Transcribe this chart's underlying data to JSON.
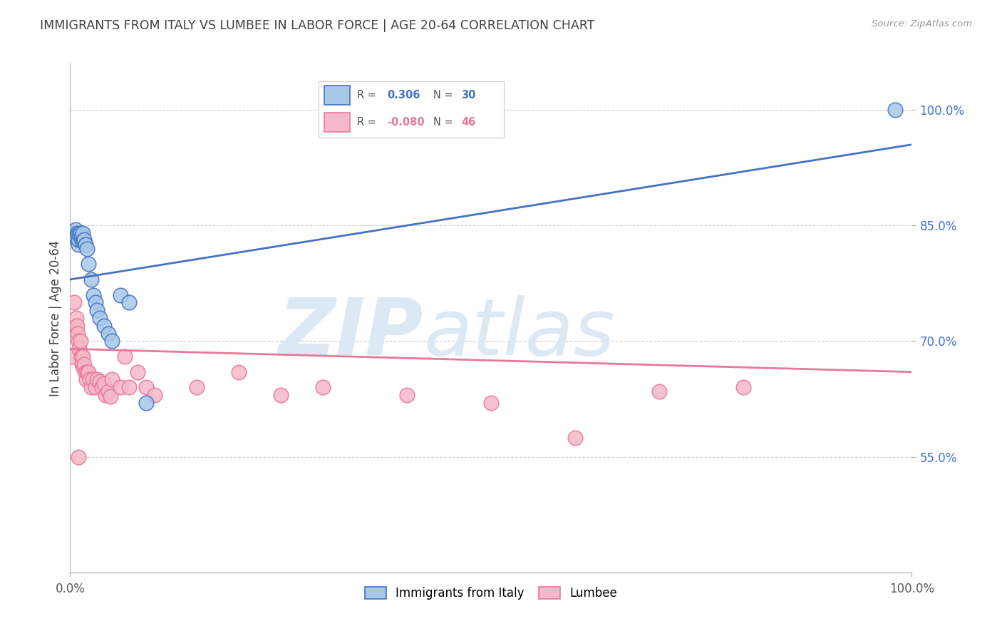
{
  "title": "IMMIGRANTS FROM ITALY VS LUMBEE IN LABOR FORCE | AGE 20-64 CORRELATION CHART",
  "source": "Source: ZipAtlas.com",
  "ylabel": "In Labor Force | Age 20-64",
  "yticks": [
    0.55,
    0.7,
    0.85,
    1.0
  ],
  "ytick_labels": [
    "55.0%",
    "70.0%",
    "85.0%",
    "100.0%"
  ],
  "xlim": [
    0.0,
    1.0
  ],
  "ylim": [
    0.4,
    1.06
  ],
  "xtick_labels": [
    "0.0%",
    "100.0%"
  ],
  "r_italy": "0.306",
  "n_italy": "30",
  "r_lumbee": "-0.080",
  "n_lumbee": "46",
  "watermark_zip": "ZIP",
  "watermark_atlas": "atlas",
  "color_italy_fill": "#a8c8e8",
  "color_italy_edge": "#4472c4",
  "color_lumbee_fill": "#f4b8c8",
  "color_lumbee_edge": "#e87898",
  "color_line_italy": "#4472c4",
  "color_line_lumbee": "#e87898",
  "color_ytick": "#4472c4",
  "color_grid": "#cccccc",
  "color_title": "#404040",
  "italy_x": [
    0.003,
    0.005,
    0.006,
    0.007,
    0.008,
    0.009,
    0.01,
    0.01,
    0.011,
    0.012,
    0.013,
    0.014,
    0.015,
    0.016,
    0.017,
    0.018,
    0.02,
    0.022,
    0.025,
    0.028,
    0.03,
    0.032,
    0.035,
    0.04,
    0.045,
    0.05,
    0.06,
    0.07,
    0.09,
    0.98
  ],
  "italy_y": [
    0.84,
    0.835,
    0.845,
    0.835,
    0.84,
    0.838,
    0.825,
    0.832,
    0.838,
    0.84,
    0.835,
    0.83,
    0.84,
    0.83,
    0.832,
    0.825,
    0.82,
    0.8,
    0.78,
    0.76,
    0.75,
    0.74,
    0.73,
    0.72,
    0.71,
    0.7,
    0.76,
    0.75,
    0.62,
    1.0
  ],
  "lumbee_x": [
    0.002,
    0.005,
    0.006,
    0.007,
    0.008,
    0.009,
    0.01,
    0.011,
    0.012,
    0.013,
    0.014,
    0.015,
    0.016,
    0.017,
    0.018,
    0.019,
    0.02,
    0.022,
    0.023,
    0.025,
    0.027,
    0.03,
    0.032,
    0.035,
    0.038,
    0.04,
    0.042,
    0.045,
    0.048,
    0.05,
    0.06,
    0.065,
    0.07,
    0.08,
    0.09,
    0.1,
    0.15,
    0.2,
    0.25,
    0.3,
    0.4,
    0.5,
    0.6,
    0.7,
    0.8,
    0.01
  ],
  "lumbee_y": [
    0.68,
    0.75,
    0.72,
    0.73,
    0.72,
    0.71,
    0.7,
    0.69,
    0.7,
    0.68,
    0.67,
    0.68,
    0.665,
    0.67,
    0.66,
    0.65,
    0.66,
    0.66,
    0.65,
    0.64,
    0.65,
    0.64,
    0.65,
    0.648,
    0.64,
    0.645,
    0.63,
    0.635,
    0.628,
    0.65,
    0.64,
    0.68,
    0.64,
    0.66,
    0.64,
    0.63,
    0.64,
    0.66,
    0.63,
    0.64,
    0.63,
    0.62,
    0.575,
    0.635,
    0.64,
    0.55
  ],
  "line_italy_x0": 0.0,
  "line_italy_y0": 0.78,
  "line_italy_x1": 1.0,
  "line_italy_y1": 0.955,
  "line_lumbee_x0": 0.0,
  "line_lumbee_y0": 0.69,
  "line_lumbee_x1": 1.0,
  "line_lumbee_y1": 0.66
}
